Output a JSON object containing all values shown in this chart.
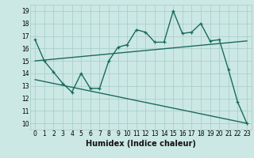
{
  "title": "",
  "xlabel": "Humidex (Indice chaleur)",
  "bg_color": "#cce8e4",
  "grid_color": "#aacfca",
  "line_color": "#1a6b5e",
  "xlim": [
    -0.5,
    23.5
  ],
  "ylim": [
    9.5,
    19.5
  ],
  "xticks": [
    0,
    1,
    2,
    3,
    4,
    5,
    6,
    7,
    8,
    9,
    10,
    11,
    12,
    13,
    14,
    15,
    16,
    17,
    18,
    19,
    20,
    21,
    22,
    23
  ],
  "yticks": [
    10,
    11,
    12,
    13,
    14,
    15,
    16,
    17,
    18,
    19
  ],
  "main_x": [
    0,
    1,
    2,
    3,
    4,
    5,
    6,
    7,
    8,
    9,
    10,
    11,
    12,
    13,
    14,
    15,
    16,
    17,
    18,
    19,
    20,
    21,
    22,
    23
  ],
  "main_y": [
    16.7,
    15.0,
    14.1,
    13.2,
    12.5,
    14.0,
    12.8,
    12.8,
    15.0,
    16.1,
    16.3,
    17.5,
    17.3,
    16.5,
    16.5,
    19.0,
    17.2,
    17.3,
    18.0,
    16.6,
    16.7,
    14.3,
    11.7,
    10.0
  ],
  "upper_line_x": [
    0,
    23
  ],
  "upper_line_y": [
    15.0,
    16.6
  ],
  "lower_line_x": [
    0,
    23
  ],
  "lower_line_y": [
    13.5,
    10.0
  ],
  "marker_size": 3.0,
  "linewidth": 1.0,
  "tick_fontsize": 5.5,
  "xlabel_fontsize": 7
}
